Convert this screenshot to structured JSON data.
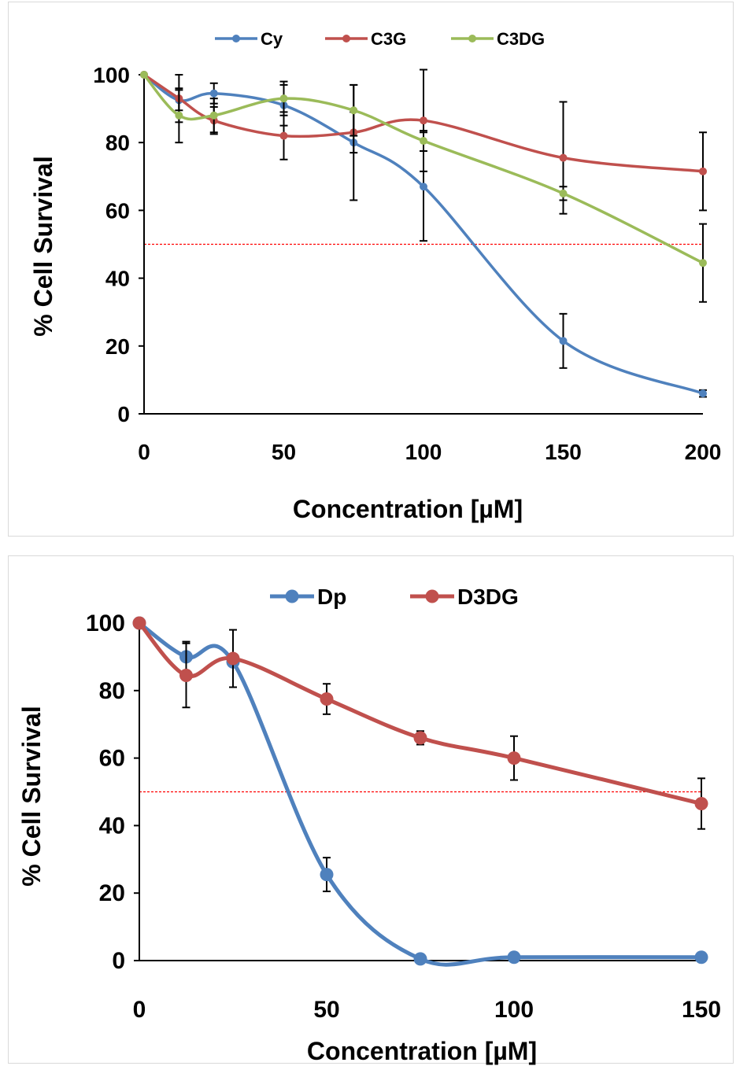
{
  "chart_data": [
    {
      "type": "line",
      "xlabel": "Concentration [µM]",
      "ylabel": "% Cell Survival",
      "xlim": [
        0,
        200
      ],
      "ylim": [
        0,
        100
      ],
      "xticks": [
        0,
        50,
        100,
        150,
        200
      ],
      "yticks": [
        0,
        20,
        40,
        60,
        80,
        100
      ],
      "reference_line": {
        "y": 50,
        "color": "#ff0000",
        "style": "dashed"
      },
      "legend_position": "top-center",
      "series": [
        {
          "name": "Cy",
          "color": "#4f81bd",
          "x": [
            0,
            12.5,
            25,
            50,
            75,
            100,
            150,
            200
          ],
          "y": [
            100,
            92.5,
            94.5,
            91,
            80,
            67,
            21.5,
            6
          ],
          "error": [
            0,
            3,
            3,
            6,
            17,
            16,
            8,
            1
          ]
        },
        {
          "name": "C3G",
          "color": "#c0504d",
          "x": [
            0,
            12.5,
            25,
            50,
            75,
            100,
            150,
            200
          ],
          "y": [
            100,
            93,
            86.5,
            82,
            83,
            86.5,
            75.5,
            71.5
          ],
          "error": [
            0,
            7,
            4,
            7,
            6,
            15,
            16.5,
            11.5
          ]
        },
        {
          "name": "C3DG",
          "color": "#9bbb59",
          "x": [
            0,
            12.5,
            25,
            50,
            75,
            100,
            150,
            200
          ],
          "y": [
            100,
            88,
            88,
            93,
            89.5,
            80.5,
            65,
            44.5
          ],
          "error": [
            0,
            8,
            5,
            5,
            7.5,
            3,
            2,
            11.5
          ]
        }
      ]
    },
    {
      "type": "line",
      "xlabel": "Concentration  [µM]",
      "ylabel": "% Cell Survival",
      "xlim": [
        0,
        150
      ],
      "ylim": [
        0,
        100
      ],
      "xticks": [
        0,
        50,
        100,
        150
      ],
      "yticks": [
        0,
        20,
        40,
        60,
        80,
        100
      ],
      "reference_line": {
        "y": 50,
        "color": "#ff0000",
        "style": "dashed"
      },
      "legend_position": "top-center",
      "series": [
        {
          "name": "Dp",
          "color": "#4f81bd",
          "x": [
            0,
            12.5,
            25,
            50,
            75,
            100,
            150
          ],
          "y": [
            100,
            90,
            88.5,
            25.5,
            0.5,
            1,
            1
          ],
          "error": [
            0,
            4.5,
            0,
            5,
            0,
            0,
            0
          ]
        },
        {
          "name": "D3DG",
          "color": "#c0504d",
          "x": [
            0,
            12.5,
            25,
            50,
            75,
            100,
            150
          ],
          "y": [
            100,
            84.5,
            89.5,
            77.5,
            66,
            60,
            46.5
          ],
          "error": [
            0,
            9.5,
            8.5,
            4.5,
            2,
            6.5,
            7.5
          ]
        }
      ]
    }
  ]
}
